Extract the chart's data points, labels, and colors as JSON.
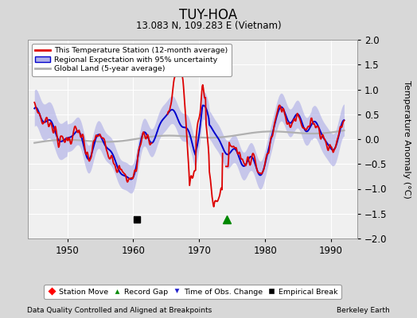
{
  "title": "TUY-HOA",
  "subtitle": "13.083 N, 109.283 E (Vietnam)",
  "xlabel_note": "Data Quality Controlled and Aligned at Breakpoints",
  "xlabel_right": "Berkeley Earth",
  "ylabel": "Temperature Anomaly (°C)",
  "xlim": [
    1944,
    1994
  ],
  "ylim": [
    -2,
    2
  ],
  "yticks": [
    -2,
    -1.5,
    -1,
    -0.5,
    0,
    0.5,
    1,
    1.5,
    2
  ],
  "xticks": [
    1950,
    1960,
    1970,
    1980,
    1990
  ],
  "bg_color": "#d8d8d8",
  "plot_bg": "#f0f0f0",
  "grid_color": "#ffffff",
  "red_color": "#dd0000",
  "blue_color": "#0000cc",
  "blue_fill": "#b0b0e8",
  "gray_color": "#b0b0b0",
  "empirical_break_x": 1960.5,
  "empirical_break_y": -1.62,
  "record_gap_x": 1974.2,
  "record_gap_y": -1.62
}
